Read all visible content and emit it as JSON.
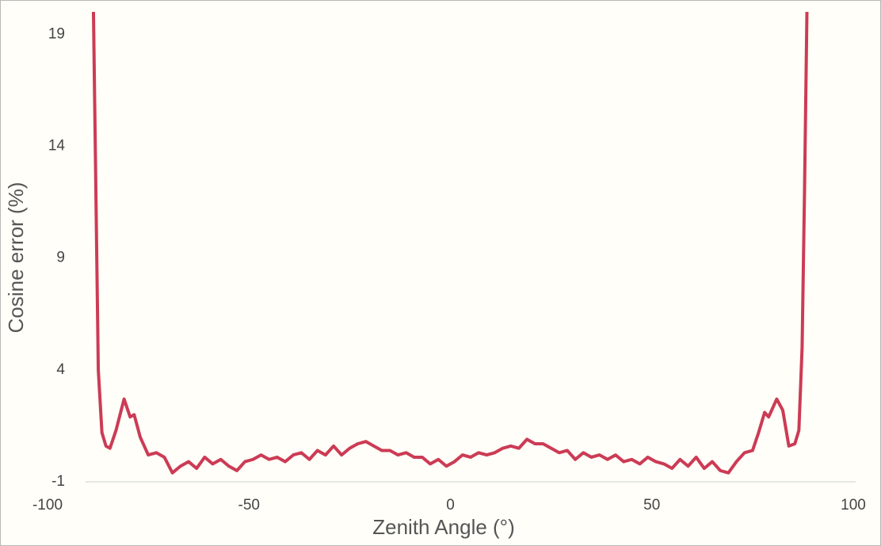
{
  "chart_data": {
    "type": "line",
    "x_label": "Zenith Angle (°)",
    "y_label": "Cosine error (%)",
    "xlim": [
      -100,
      100
    ],
    "xticks": [
      -100,
      -50,
      0,
      50,
      100
    ],
    "ylim": [
      -1,
      20
    ],
    "yticks": [
      -1,
      4,
      9,
      14,
      19
    ],
    "grid": false,
    "series": [
      {
        "name": "Cosine error",
        "color": "#cc3b55",
        "x": [
          -88.6,
          -88,
          -87.4,
          -86.5,
          -85.5,
          -84.5,
          -83,
          -81,
          -79.5,
          -78.5,
          -77,
          -75,
          -73,
          -71,
          -69,
          -67,
          -65,
          -63,
          -61,
          -59,
          -57,
          -55,
          -53,
          -51,
          -49,
          -47,
          -45,
          -43,
          -41,
          -39,
          -37,
          -35,
          -33,
          -31,
          -29,
          -27,
          -25,
          -23,
          -21,
          -19,
          -17,
          -15,
          -13,
          -11,
          -9,
          -7,
          -5,
          -3,
          -1,
          1,
          3,
          5,
          7,
          9,
          11,
          13,
          15,
          17,
          19,
          21,
          23,
          25,
          27,
          29,
          31,
          33,
          35,
          37,
          39,
          41,
          43,
          45,
          47,
          49,
          51,
          53,
          55,
          57,
          59,
          61,
          63,
          65,
          67,
          69,
          71,
          73,
          75,
          76.5,
          78,
          79,
          81,
          82.5,
          84,
          85.5,
          86.5,
          87.3,
          87.9,
          88.5
        ],
        "values": [
          20,
          12,
          4,
          1.2,
          0.6,
          0.5,
          1.3,
          2.7,
          1.9,
          2.0,
          1.0,
          0.2,
          0.3,
          0.1,
          -0.6,
          -0.3,
          -0.1,
          -0.4,
          0.1,
          -0.2,
          0.0,
          -0.3,
          -0.5,
          -0.1,
          0.0,
          0.2,
          0.0,
          0.1,
          -0.1,
          0.2,
          0.3,
          0.0,
          0.4,
          0.2,
          0.6,
          0.2,
          0.5,
          0.7,
          0.8,
          0.6,
          0.4,
          0.4,
          0.2,
          0.3,
          0.1,
          0.1,
          -0.2,
          0.0,
          -0.3,
          -0.1,
          0.2,
          0.1,
          0.3,
          0.2,
          0.3,
          0.5,
          0.6,
          0.5,
          0.9,
          0.7,
          0.7,
          0.5,
          0.3,
          0.4,
          0.0,
          0.3,
          0.1,
          0.2,
          0.0,
          0.2,
          -0.1,
          0.0,
          -0.2,
          0.1,
          -0.1,
          -0.2,
          -0.4,
          0.0,
          -0.3,
          0.1,
          -0.4,
          -0.1,
          -0.5,
          -0.6,
          -0.1,
          0.3,
          0.4,
          1.2,
          2.1,
          1.9,
          2.7,
          2.2,
          0.6,
          0.7,
          1.3,
          5,
          12,
          20
        ]
      }
    ]
  }
}
